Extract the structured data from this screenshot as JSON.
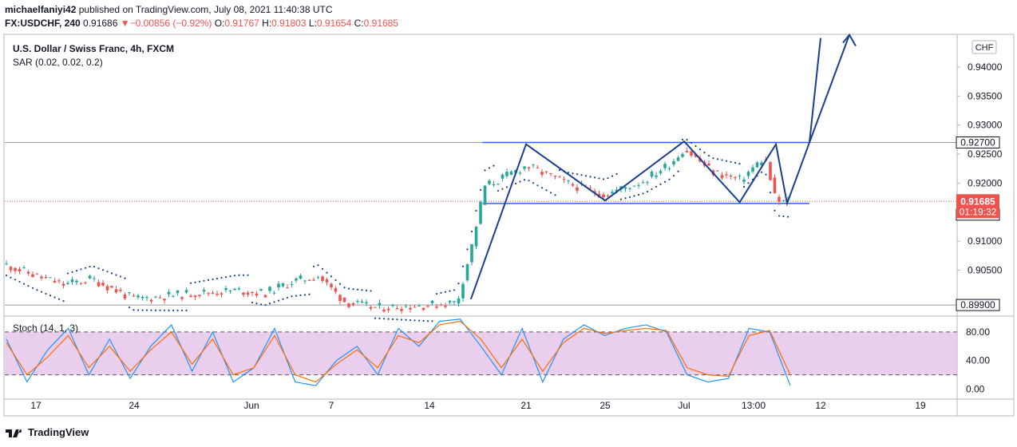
{
  "header": {
    "author": "michaelfaniyi42",
    "published_text": "published on TradingView.com, July 08, 2021 11:40:38 UTC",
    "symbol": "FX:USDCHF, 240",
    "last": "0.91686",
    "change": "−0.00856 (−0.92%)",
    "o_label": "O:",
    "o_value": "0.91767",
    "h_label": "H:",
    "h_value": "0.91803",
    "l_label": "L:",
    "l_value": "0.91654",
    "c_label": "C:",
    "c_value": "0.91685"
  },
  "legend": {
    "title": "U.S. Dollar / Swiss Franc, 4h, FXCM",
    "indicator": "SAR (0.02, 0.02, 0.2)"
  },
  "currency_badge": "CHF",
  "price_labels": {
    "resistance": "0.92700",
    "current": "0.91685",
    "countdown": "01:19:32",
    "low_line": "0.91650",
    "support": "0.89900"
  },
  "footer": {
    "brand": "TradingView"
  },
  "colors": {
    "up": "#26a69a",
    "down": "#ef5350",
    "pattern": "#1a3f8f",
    "channel": "#2962ff",
    "sar": "#1a3f8f",
    "stoch_k": "#2196f3",
    "stoch_d": "#ff6d00",
    "stoch_band": "#e1bee7"
  },
  "chart_data": [
    {
      "type": "candlestick",
      "title": "U.S. Dollar / Swiss Franc, 4h, FXCM",
      "x_tick_labels": [
        "17",
        "24",
        "Jun",
        "7",
        "14",
        "21",
        "25",
        "Jul",
        "13:00",
        "12",
        "19"
      ],
      "y_tick_labels": [
        "0.94000",
        "0.93500",
        "0.93000",
        "0.92500",
        "0.92000",
        "0.91000",
        "0.90500"
      ],
      "ylim": [
        0.8975,
        0.9455
      ],
      "horizontal_levels": [
        0.927,
        0.9165,
        0.899
      ],
      "pattern_path": [
        {
          "x": "Jun 17",
          "y": 0.9
        },
        {
          "x": "Jun 21",
          "y": 0.9267
        },
        {
          "x": "Jun 25",
          "y": 0.917
        },
        {
          "x": "Jul 1",
          "y": 0.9272
        },
        {
          "x": "Jul 5",
          "y": 0.9167
        },
        {
          "x": "Jul 8",
          "y": 0.9267
        },
        {
          "x": "Jul 9",
          "y": 0.9165
        },
        {
          "x": "Jul 11",
          "y": 0.927
        },
        {
          "x": "Jul 12",
          "y": 0.945
        }
      ],
      "price_series": [
        {
          "x": "May 14",
          "y": 0.906
        },
        {
          "x": "May 17",
          "y": 0.904
        },
        {
          "x": "May 19",
          "y": 0.9025
        },
        {
          "x": "May 21",
          "y": 0.9035
        },
        {
          "x": "May 24",
          "y": 0.9
        },
        {
          "x": "May 26",
          "y": 0.9005
        },
        {
          "x": "May 28",
          "y": 0.901
        },
        {
          "x": "May 31",
          "y": 0.9015
        },
        {
          "x": "Jun 2",
          "y": 0.901
        },
        {
          "x": "Jun 4",
          "y": 0.903
        },
        {
          "x": "Jun 6",
          "y": 0.904
        },
        {
          "x": "Jun 8",
          "y": 0.8995
        },
        {
          "x": "Jun 10",
          "y": 0.8985
        },
        {
          "x": "Jun 14",
          "y": 0.899
        },
        {
          "x": "Jun 16",
          "y": 0.8995
        },
        {
          "x": "Jun 17",
          "y": 0.9085
        },
        {
          "x": "Jun 18",
          "y": 0.9195
        },
        {
          "x": "Jun 19",
          "y": 0.9205
        },
        {
          "x": "Jun 21",
          "y": 0.923
        },
        {
          "x": "Jun 23",
          "y": 0.92
        },
        {
          "x": "Jun 25",
          "y": 0.918
        },
        {
          "x": "Jun 28",
          "y": 0.9205
        },
        {
          "x": "Jun 30",
          "y": 0.9235
        },
        {
          "x": "Jul 1",
          "y": 0.926
        },
        {
          "x": "Jul 3",
          "y": 0.922
        },
        {
          "x": "Jul 5",
          "y": 0.9205
        },
        {
          "x": "Jul 7",
          "y": 0.9245
        },
        {
          "x": "Jul 8",
          "y": 0.9168
        }
      ]
    },
    {
      "type": "line",
      "title": "Stoch (14, 1, 3)",
      "y_tick_labels": [
        "80.00",
        "40.00",
        "0.00"
      ],
      "ylim": [
        -5,
        100
      ],
      "band": [
        20,
        80
      ],
      "series": [
        {
          "values": [
            70,
            10,
            55,
            85,
            20,
            70,
            15,
            60,
            90,
            25,
            80,
            10,
            30,
            85,
            10,
            5,
            40,
            60,
            20,
            85,
            60,
            95,
            98,
            60,
            20,
            85,
            10,
            70,
            90,
            75,
            85,
            90,
            80,
            20,
            10,
            15,
            85,
            80,
            5
          ]
        },
        {
          "values": [
            65,
            20,
            45,
            75,
            30,
            60,
            25,
            55,
            80,
            35,
            70,
            20,
            30,
            75,
            20,
            10,
            35,
            55,
            30,
            75,
            65,
            90,
            95,
            70,
            30,
            70,
            25,
            65,
            85,
            78,
            82,
            85,
            82,
            30,
            20,
            18,
            75,
            82,
            20
          ]
        }
      ]
    }
  ]
}
